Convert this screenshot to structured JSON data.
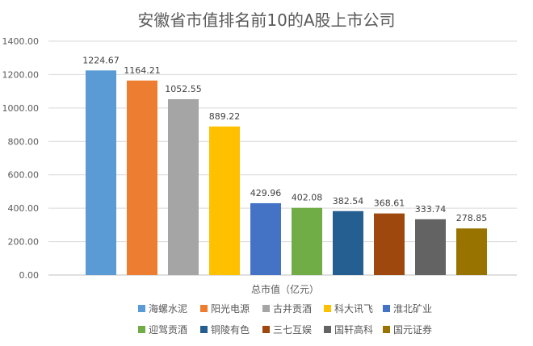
{
  "chart_data": {
    "type": "bar",
    "title": "安徽省市值排名前10的A股上市公司",
    "xlabel": "总市值（亿元）",
    "ylabel": "",
    "ylim": [
      0,
      1400
    ],
    "yticks": [
      "0.00",
      "200.00",
      "400.00",
      "600.00",
      "800.00",
      "1000.00",
      "1200.00",
      "1400.00"
    ],
    "ytick_values": [
      0,
      200,
      400,
      600,
      800,
      1000,
      1200,
      1400
    ],
    "grid": true,
    "legend_position": "bottom",
    "series": [
      {
        "name": "海螺水泥",
        "value": 1224.67,
        "label": "1224.67",
        "color": "#5B9BD5"
      },
      {
        "name": "阳光电源",
        "value": 1164.21,
        "label": "1164.21",
        "color": "#ED7D31"
      },
      {
        "name": "古井贡酒",
        "value": 1052.55,
        "label": "1052.55",
        "color": "#A5A5A5"
      },
      {
        "name": "科大讯飞",
        "value": 889.22,
        "label": "889.22",
        "color": "#FFC000"
      },
      {
        "name": "淮北矿业",
        "value": 429.96,
        "label": "429.96",
        "color": "#4472C4"
      },
      {
        "name": "迎驾贡酒",
        "value": 402.08,
        "label": "402.08",
        "color": "#70AD47"
      },
      {
        "name": "铜陵有色",
        "value": 382.54,
        "label": "382.54",
        "color": "#255E91"
      },
      {
        "name": "三七互娱",
        "value": 368.61,
        "label": "368.61",
        "color": "#9E480E"
      },
      {
        "name": "国轩高科",
        "value": 333.74,
        "label": "333.74",
        "color": "#636363"
      },
      {
        "name": "国元证券",
        "value": 278.85,
        "label": "278.85",
        "color": "#997300"
      }
    ]
  }
}
